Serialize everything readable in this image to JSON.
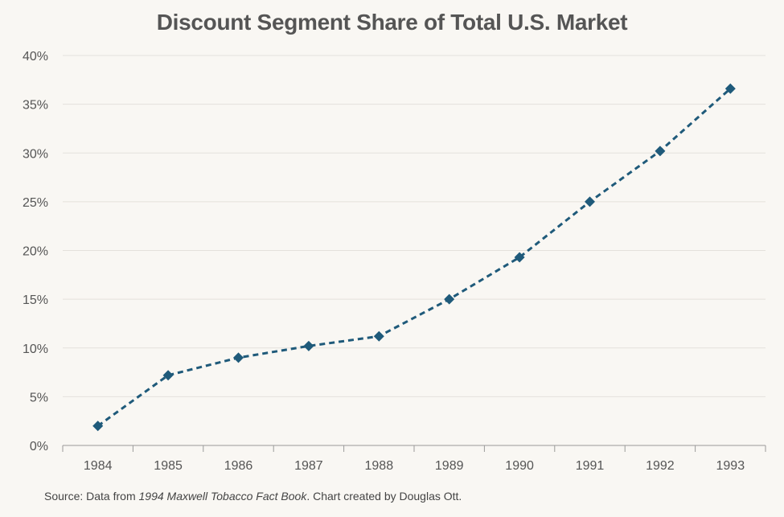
{
  "chart_data": {
    "type": "line",
    "title": "Discount Segment Share of Total U.S. Market",
    "xlabel": "",
    "ylabel": "",
    "categories": [
      "1984",
      "1985",
      "1986",
      "1987",
      "1988",
      "1989",
      "1990",
      "1991",
      "1992",
      "1993"
    ],
    "series": [
      {
        "name": "Discount segment share",
        "values": [
          2.0,
          7.2,
          9.0,
          10.2,
          11.2,
          15.0,
          19.3,
          25.0,
          30.2,
          36.6
        ]
      }
    ],
    "ylim": [
      0,
      40
    ],
    "yticks": [
      "0%",
      "5%",
      "10%",
      "15%",
      "20%",
      "25%",
      "30%",
      "35%",
      "40%"
    ],
    "grid": true,
    "line_style": "dashed",
    "marker": "diamond",
    "color": "#1f5a7a",
    "source": {
      "prefix": "Source: Data from ",
      "book": "1994 Maxwell Tobacco Fact Book",
      "suffix": ". Chart created by Douglas Ott."
    }
  }
}
